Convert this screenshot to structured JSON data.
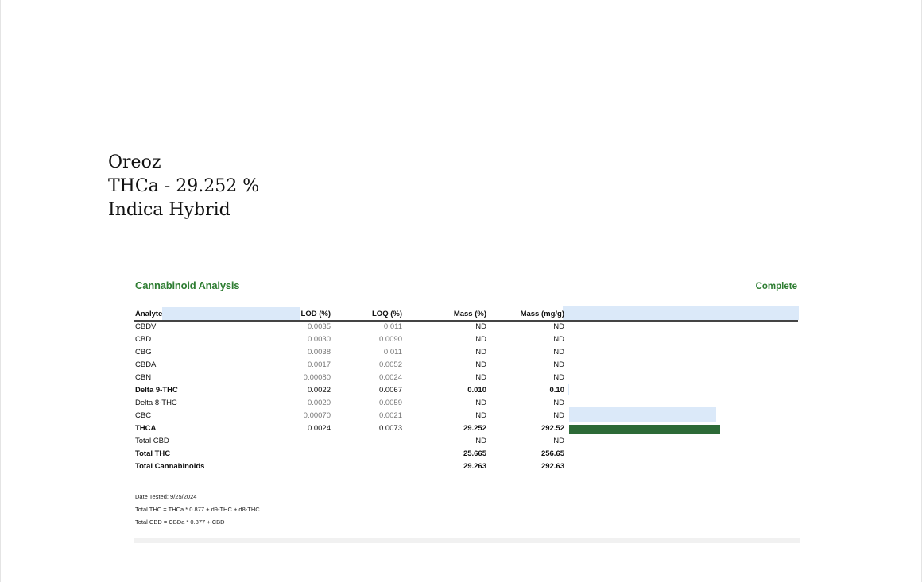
{
  "heading": {
    "line1": "Oreoz",
    "line2": "THCa - 29.252 %",
    "line3": "Indica Hybrid"
  },
  "report": {
    "title": "Cannabinoid Analysis",
    "status": "Complete",
    "columns": [
      "Analyte",
      "LOD (%)",
      "LOQ (%)",
      "Mass (%)",
      "Mass (mg/g)"
    ],
    "rows": [
      [
        "CBDV",
        "0.0035",
        "0.011",
        "ND",
        "ND"
      ],
      [
        "CBD",
        "0.0030",
        "0.0090",
        "ND",
        "ND"
      ],
      [
        "CBG",
        "0.0038",
        "0.011",
        "ND",
        "ND"
      ],
      [
        "CBDA",
        "0.0017",
        "0.0052",
        "ND",
        "ND"
      ],
      [
        "CBN",
        "0.00080",
        "0.0024",
        "ND",
        "ND"
      ],
      [
        "Delta 9-THC",
        "0.0022",
        "0.0067",
        "0.010",
        "0.10"
      ],
      [
        "Delta 8-THC",
        "0.0020",
        "0.0059",
        "ND",
        "ND"
      ],
      [
        "CBC",
        "0.00070",
        "0.0021",
        "ND",
        "ND"
      ],
      [
        "THCA",
        "0.0024",
        "0.0073",
        "29.252",
        "292.52"
      ],
      [
        "Total CBD",
        "",
        "",
        "ND",
        "ND"
      ],
      [
        "Total THC",
        "",
        "",
        "25.665",
        "256.65"
      ],
      [
        "Total Cannabinoids",
        "",
        "",
        "29.263",
        "292.63"
      ]
    ],
    "notes": [
      "Date Tested: 9/25/2024",
      "Total THC = THCa * 0.877 + d9-THC + d8-THC",
      "Total CBD = CBDa * 0.877 + CBD"
    ],
    "colors": {
      "accent_green": "#2e7d32",
      "bar_green": "#2d6a37",
      "highlight_blue": "#dbe9f9"
    }
  }
}
